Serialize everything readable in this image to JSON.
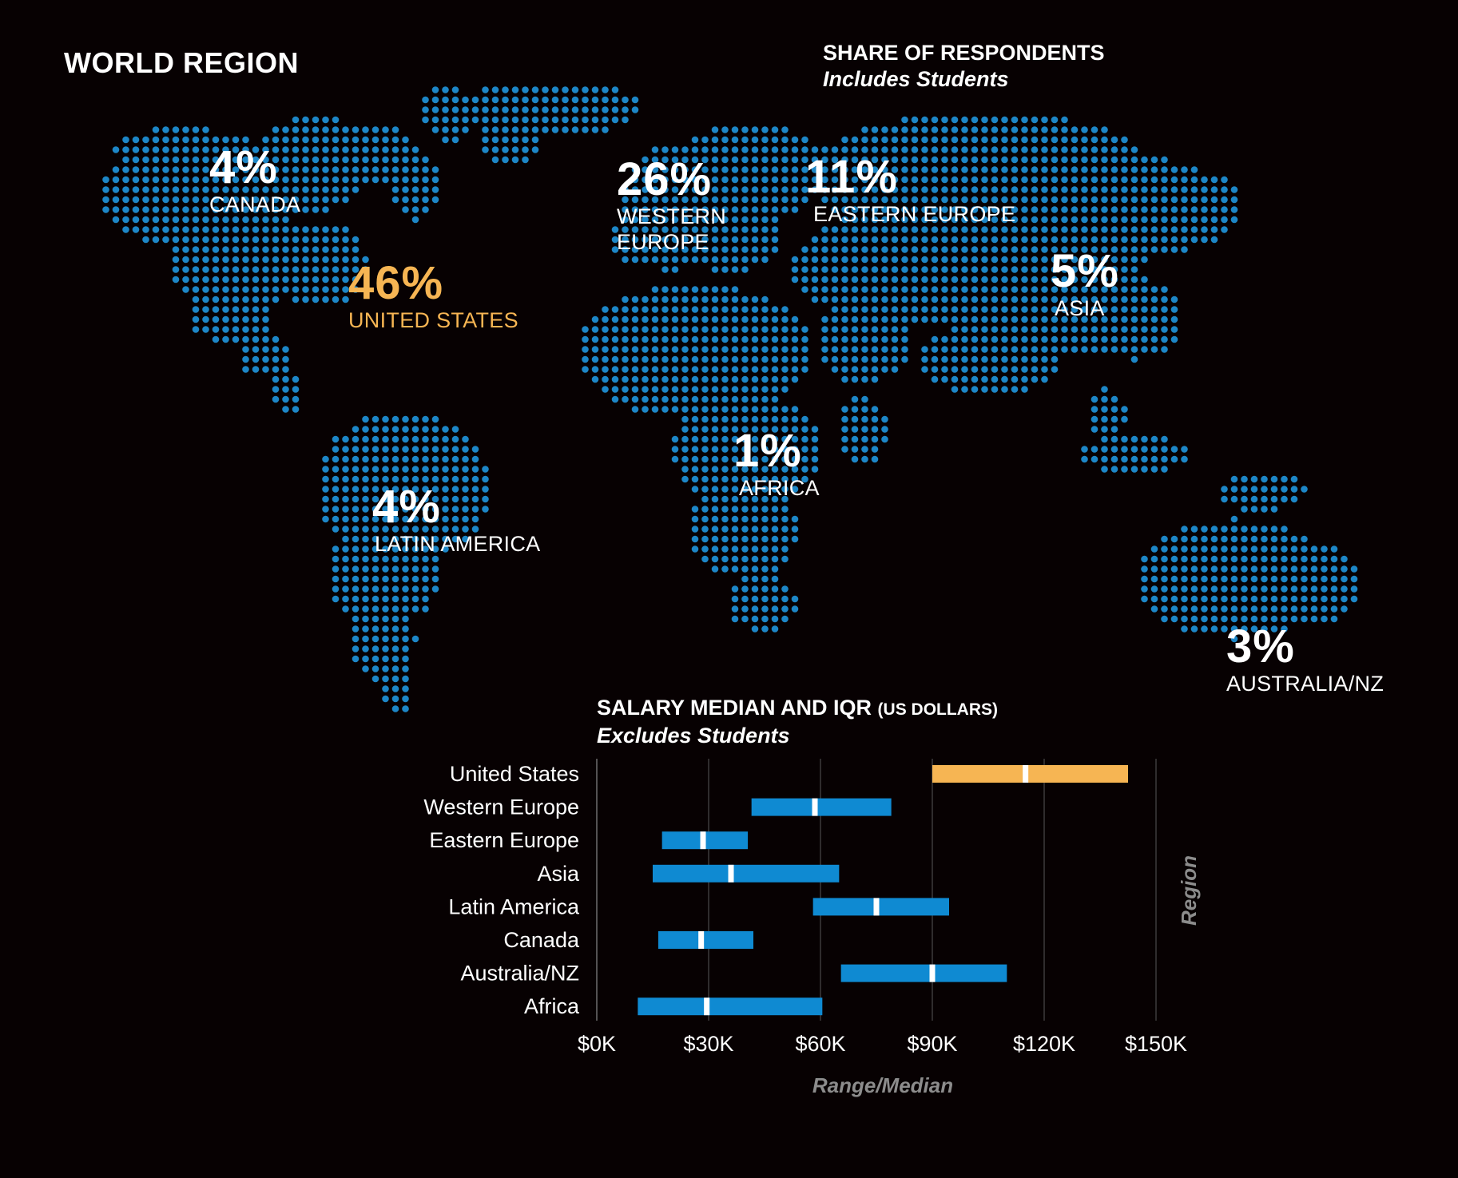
{
  "map": {
    "title": "WORLD REGION",
    "share_title": "SHARE OF RESPONDENTS",
    "share_subtitle": "Includes Students",
    "dot_color": "#1d86c6",
    "regions": [
      {
        "pct": "4%",
        "name": "CANADA"
      },
      {
        "pct": "46%",
        "name": "UNITED STATES"
      },
      {
        "pct": "26%",
        "name_line1": "WESTERN",
        "name_line2": "EUROPE"
      },
      {
        "pct": "11%",
        "name": "EASTERN EUROPE"
      },
      {
        "pct": "5%",
        "name": "ASIA"
      },
      {
        "pct": "1%",
        "name": "AFRICA"
      },
      {
        "pct": "4%",
        "name": "LATIN AMERICA"
      },
      {
        "pct": "3%",
        "name": "AUSTRALIA/NZ"
      }
    ],
    "highlight_color": "#f6b553"
  },
  "chart_data": {
    "type": "range-bar",
    "title": "SALARY MEDIAN AND IQR",
    "title_unit": "(US DOLLARS)",
    "subtitle": "Excludes Students",
    "xlabel": "Range/Median",
    "ylabel": "Region",
    "xlim": [
      0,
      158000
    ],
    "xticks": [
      0,
      30000,
      60000,
      90000,
      120000,
      150000
    ],
    "xtick_labels": [
      "$0K",
      "$30K",
      "$60K",
      "$90K",
      "$120K",
      "$150K"
    ],
    "grid": true,
    "bar_color": "#0f8ad2",
    "highlight_color": "#f6b553",
    "median_color": "#ffffff",
    "categories": [
      "United States",
      "Western Europe",
      "Eastern Europe",
      "Asia",
      "Latin America",
      "Canada",
      "Australia/NZ",
      "Africa"
    ],
    "series": [
      {
        "low": [
          90000,
          41500,
          17500,
          15000,
          58000,
          16500,
          65500,
          11000
        ],
        "median": [
          115000,
          58500,
          28500,
          36000,
          75000,
          28000,
          90000,
          29500
        ],
        "high": [
          142500,
          79000,
          40500,
          65000,
          94500,
          42000,
          110000,
          60500
        ]
      }
    ]
  }
}
